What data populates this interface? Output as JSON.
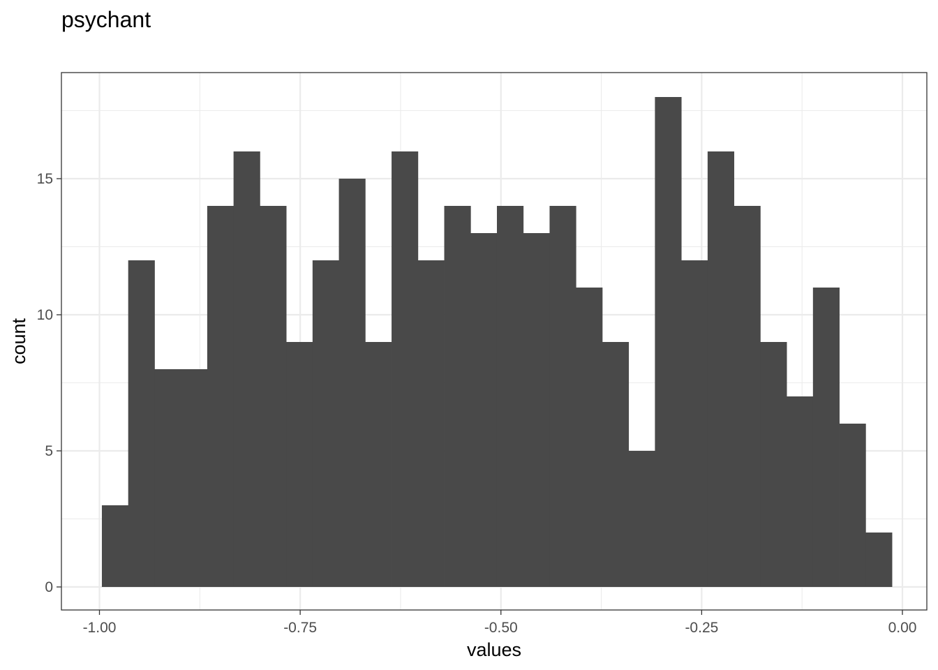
{
  "chart_data": {
    "type": "bar",
    "subtype": "histogram",
    "title": "psychant",
    "xlabel": "values",
    "ylabel": "count",
    "xlim": [
      -1.0,
      0.0
    ],
    "ylim": [
      0,
      18
    ],
    "x_ticks": [
      -1.0,
      -0.75,
      -0.5,
      -0.25,
      0.0
    ],
    "x_tick_labels": [
      "-1.00",
      "-0.75",
      "-0.50",
      "-0.25",
      "0.00"
    ],
    "y_ticks": [
      0,
      5,
      10,
      15
    ],
    "y_tick_labels": [
      "0",
      "5",
      "10",
      "15"
    ],
    "bin_start": -0.997,
    "bin_width": 0.0328,
    "values": [
      3,
      12,
      8,
      8,
      14,
      16,
      14,
      9,
      12,
      15,
      9,
      16,
      12,
      14,
      13,
      14,
      13,
      14,
      11,
      9,
      5,
      18,
      12,
      16,
      14,
      9,
      7,
      11,
      6,
      2
    ],
    "grid": true,
    "legend": "none",
    "colors": {
      "bar": "#494949",
      "grid": "#ebebeb",
      "panel_border": "#333333",
      "tick_label": "#4d4d4d",
      "background": "#ffffff"
    }
  }
}
